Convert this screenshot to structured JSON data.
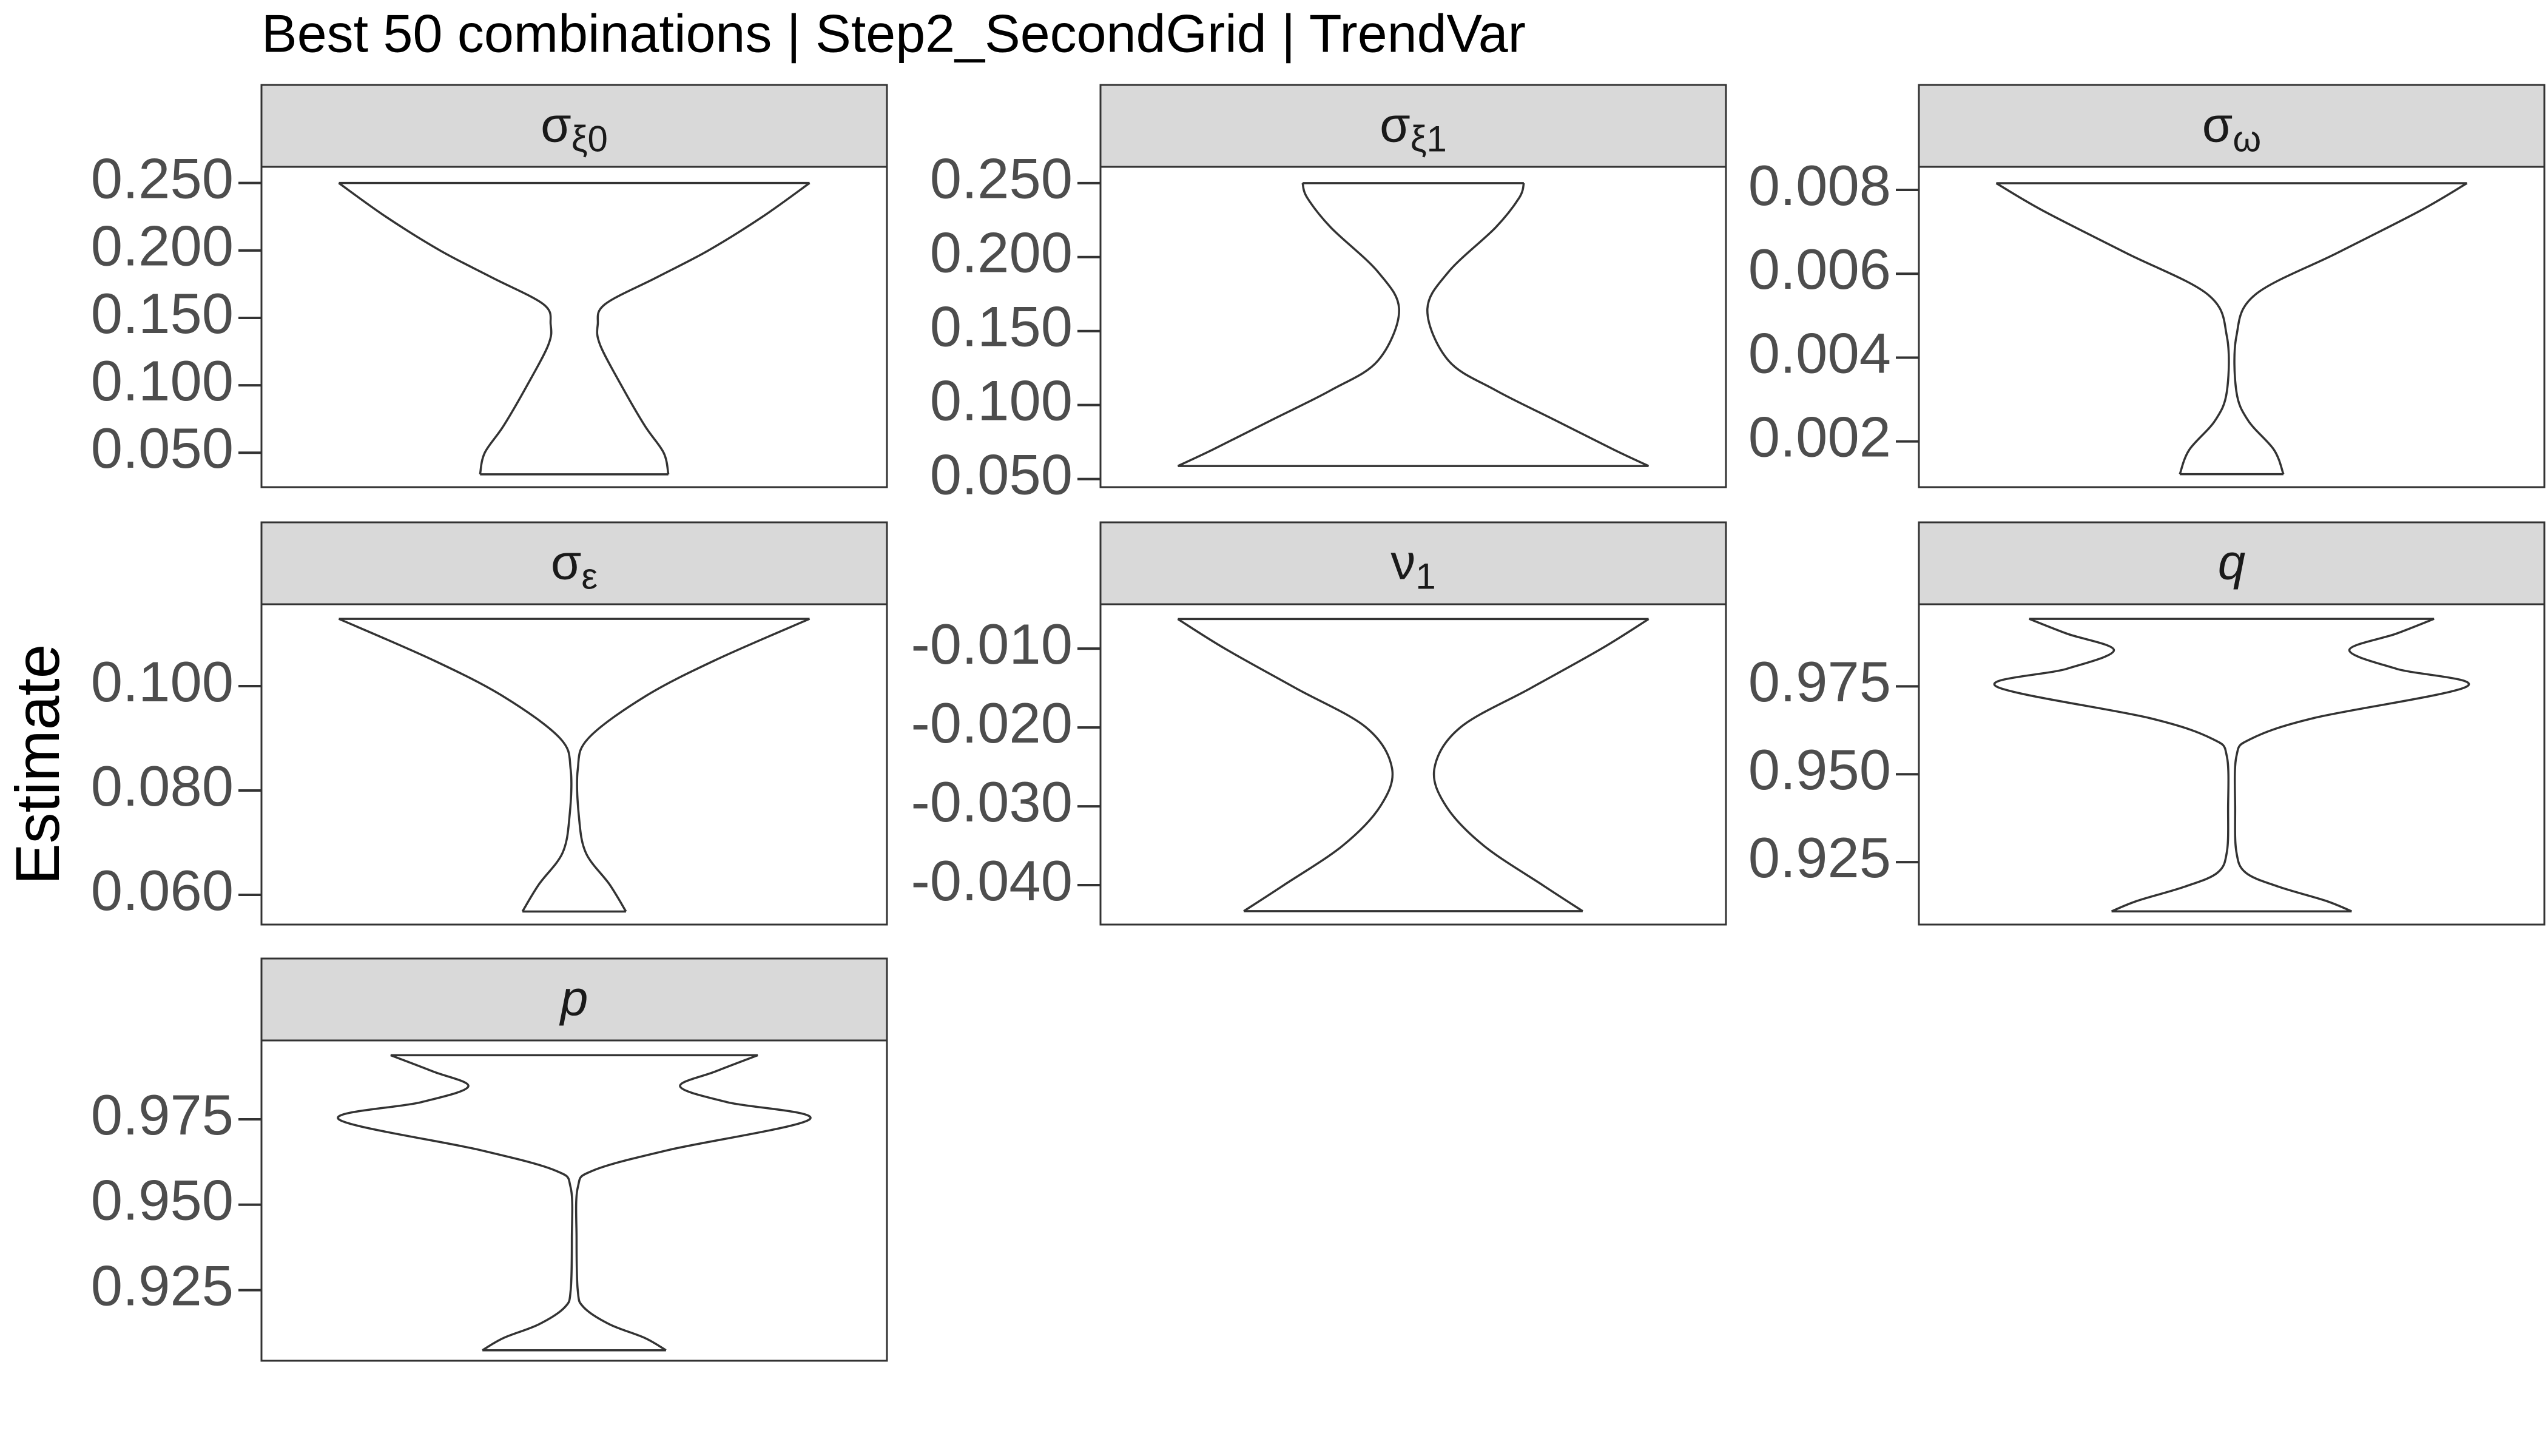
{
  "chart_data": {
    "type": "violin",
    "title": "Best 50 combinations | Step2_SecondGrid | TrendVar",
    "ylabel": "Estimate",
    "panels": [
      {
        "label": {
          "symbol": "σ",
          "subscript": "ξ0"
        },
        "ylim": [
          0.0245,
          0.262
        ],
        "yticks": [
          {
            "value": 0.05,
            "label": "0.050"
          },
          {
            "value": 0.1,
            "label": "0.100"
          },
          {
            "value": 0.15,
            "label": "0.150"
          },
          {
            "value": 0.2,
            "label": "0.200"
          },
          {
            "value": 0.25,
            "label": "0.250"
          }
        ],
        "y": [
          0.034,
          0.05,
          0.07,
          0.1,
          0.13,
          0.145,
          0.16,
          0.18,
          0.2,
          0.225,
          0.25
        ],
        "density": [
          0.4,
          0.38,
          0.3,
          0.2,
          0.11,
          0.1,
          0.13,
          0.35,
          0.57,
          0.8,
          1.0
        ]
      },
      {
        "label": {
          "symbol": "σ",
          "subscript": "ξ1"
        },
        "ylim": [
          0.0445,
          0.261
        ],
        "yticks": [
          {
            "value": 0.05,
            "label": "0.050"
          },
          {
            "value": 0.1,
            "label": "0.100"
          },
          {
            "value": 0.15,
            "label": "0.150"
          },
          {
            "value": 0.2,
            "label": "0.200"
          },
          {
            "value": 0.25,
            "label": "0.250"
          }
        ],
        "y": [
          0.0588,
          0.07,
          0.09,
          0.11,
          0.13,
          0.164,
          0.19,
          0.22,
          0.24,
          0.25
        ],
        "density": [
          1.0,
          0.85,
          0.6,
          0.35,
          0.15,
          0.06,
          0.15,
          0.35,
          0.45,
          0.47
        ]
      },
      {
        "label": {
          "symbol": "σ",
          "subscript": "ω"
        },
        "ylim": [
          0.00091,
          0.00855
        ],
        "yticks": [
          0.002,
          0.004,
          0.006,
          0.008
        ],
        "y": [
          0.00122,
          0.0018,
          0.0025,
          0.0032,
          0.0045,
          0.0055,
          0.0065,
          0.0075,
          0.00816
        ],
        "density": [
          0.22,
          0.18,
          0.07,
          0.02,
          0.02,
          0.1,
          0.45,
          0.8,
          1.0
        ]
      },
      {
        "label": {
          "symbol": "σ",
          "subscript": "ε"
        },
        "ylim": [
          0.0543,
          0.1157
        ],
        "yticks": [
          {
            "value": 0.06,
            "label": "0.060"
          },
          {
            "value": 0.08,
            "label": "0.080"
          },
          {
            "value": 0.1,
            "label": "0.100"
          }
        ],
        "y": [
          0.0568,
          0.062,
          0.068,
          0.075,
          0.084,
          0.09,
          0.098,
          0.105,
          0.1129
        ],
        "density": [
          0.22,
          0.15,
          0.05,
          0.02,
          0.015,
          0.06,
          0.3,
          0.6,
          1.0
        ]
      },
      {
        "label": {
          "symbol": "ν",
          "subscript": "1"
        },
        "ylim": [
          -0.045,
          -0.00437
        ],
        "yticks": [
          {
            "value": -0.04,
            "label": "-0.040"
          },
          {
            "value": -0.03,
            "label": "-0.030"
          },
          {
            "value": -0.02,
            "label": "-0.020"
          },
          {
            "value": -0.01,
            "label": "-0.010"
          }
        ],
        "y": [
          -0.0433,
          -0.04,
          -0.035,
          -0.03,
          -0.0252,
          -0.02,
          -0.015,
          -0.01,
          -0.00625
        ],
        "density": [
          0.72,
          0.55,
          0.3,
          0.14,
          0.09,
          0.2,
          0.5,
          0.8,
          1.0
        ]
      },
      {
        "label": {
          "symbol": "q"
        },
        "italic": true,
        "ylim": [
          0.90724,
          0.99836
        ],
        "yticks": [
          0.925,
          {
            "value": 0.95,
            "label": "0.950"
          },
          0.975
        ],
        "y": [
          0.911,
          0.914,
          0.918,
          0.922,
          0.928,
          0.94,
          0.955,
          0.96,
          0.966,
          0.975,
          0.98,
          0.9853,
          0.99,
          0.9942
        ],
        "density": [
          0.51,
          0.4,
          0.2,
          0.06,
          0.02,
          0.015,
          0.02,
          0.08,
          0.35,
          1.0,
          0.7,
          0.5,
          0.7,
          0.86
        ]
      },
      {
        "label": {
          "symbol": "p"
        },
        "italic": true,
        "ylim": [
          0.90433,
          0.99808
        ],
        "yticks": [
          0.925,
          {
            "value": 0.95,
            "label": "0.950"
          },
          0.975
        ],
        "y": [
          0.9074,
          0.911,
          0.915,
          0.92,
          0.925,
          0.94,
          0.955,
          0.96,
          0.966,
          0.975,
          0.98,
          0.9846,
          0.989,
          0.99375
        ],
        "density": [
          0.39,
          0.3,
          0.15,
          0.04,
          0.015,
          0.01,
          0.015,
          0.08,
          0.4,
          1.0,
          0.65,
          0.45,
          0.6,
          0.78
        ]
      }
    ]
  }
}
